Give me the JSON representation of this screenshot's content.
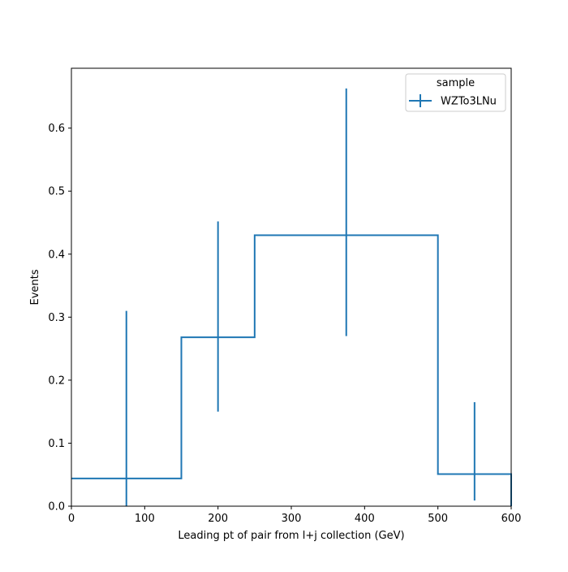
{
  "chart_data": {
    "type": "histogram-step",
    "title": "",
    "xlabel": "Leading pt of pair from l+j collection (GeV)",
    "ylabel": "Events",
    "xlim": [
      0,
      600
    ],
    "ylim": [
      0,
      0.695
    ],
    "grid": false,
    "x_ticks": [
      0,
      100,
      200,
      300,
      400,
      500,
      600
    ],
    "y_ticks": [
      0.0,
      0.1,
      0.2,
      0.3,
      0.4,
      0.5,
      0.6
    ],
    "y_tick_labels": [
      "0.0",
      "0.1",
      "0.2",
      "0.3",
      "0.4",
      "0.5",
      "0.6"
    ],
    "legend": {
      "title": "sample",
      "location": "top-right",
      "entries": [
        "WZTo3LNu"
      ]
    },
    "series": [
      {
        "name": "WZTo3LNu",
        "color": "#1f77b4",
        "bin_edges": [
          0,
          150,
          250,
          500,
          600
        ],
        "values": [
          0.044,
          0.268,
          0.43,
          0.051
        ],
        "errors_low": [
          0.044,
          0.118,
          0.16,
          0.042
        ],
        "errors_high": [
          0.266,
          0.184,
          0.233,
          0.114
        ]
      }
    ]
  }
}
